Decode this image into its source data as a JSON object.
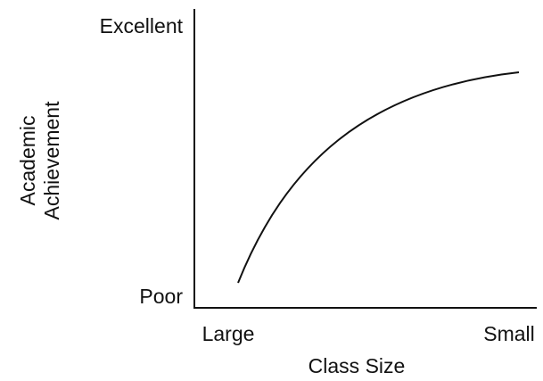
{
  "chart_data": {
    "type": "line",
    "y_label": [
      "Academic",
      "Achievement"
    ],
    "x_label": "Class Size",
    "y_axis_labels": [
      "Excellent",
      "Poor"
    ],
    "x_axis_labels": [
      "Large",
      "Small"
    ]
  }
}
